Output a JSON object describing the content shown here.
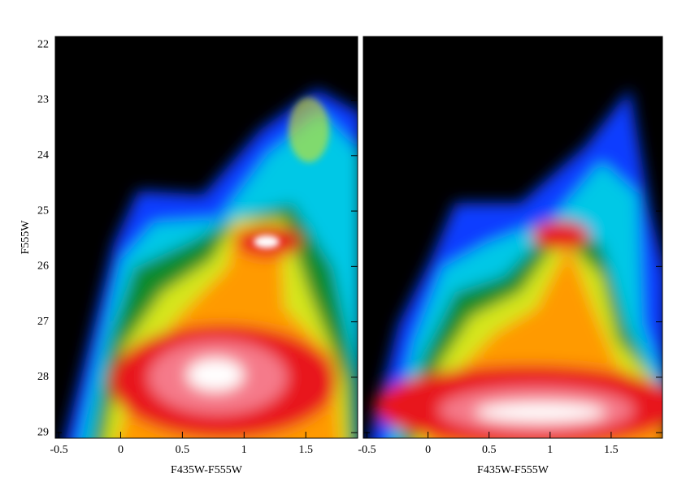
{
  "chart_data": [
    {
      "type": "density",
      "xlabel": "F435W-F555W",
      "ylabel": "F555W",
      "xlim": [
        -0.53,
        1.92
      ],
      "ylim": [
        21.85,
        29.1
      ],
      "xticks": [
        -0.5,
        0,
        0.5,
        1,
        1.5
      ],
      "yticks": [
        22,
        23,
        24,
        25,
        26,
        27,
        28,
        29
      ],
      "ytick_labels": true
    },
    {
      "type": "density",
      "xlabel": "F435W-F555W",
      "xlim": [
        -0.53,
        1.92
      ],
      "ylim": [
        21.85,
        29.1
      ],
      "xticks": [
        -0.5,
        0,
        0.5,
        1,
        1.5
      ],
      "yticks": [
        22,
        23,
        24,
        25,
        26,
        27,
        28,
        29
      ],
      "ytick_labels": false
    }
  ]
}
